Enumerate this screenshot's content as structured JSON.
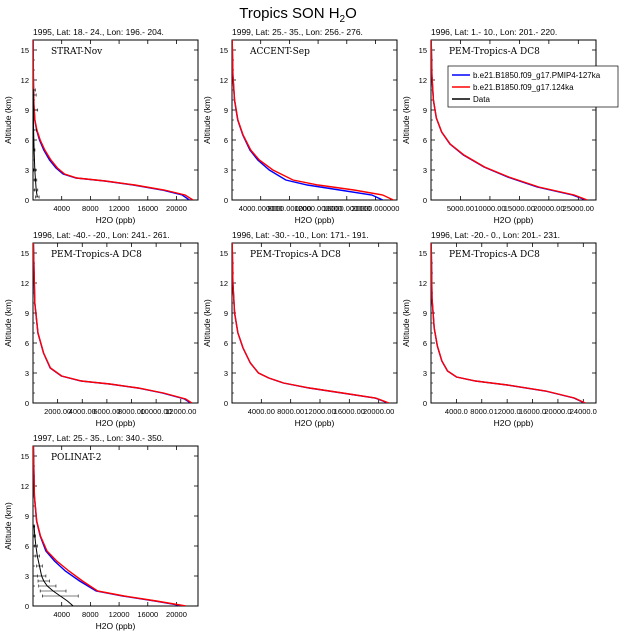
{
  "figure": {
    "title_main": "Tropics SON H",
    "title_sub": "2",
    "title_tail": "O"
  },
  "legend": {
    "placement": "top-right",
    "entries": [
      {
        "label": "b.e21.B1850.f09_g17.PMIP4-127ka",
        "color": "#0000ff"
      },
      {
        "label": "b.e21.B1850.f09_g17.124ka",
        "color": "#ff0000"
      },
      {
        "label": "Data",
        "color": "#000000"
      }
    ]
  },
  "chart_data": [
    {
      "type": "line",
      "title": "1995, Lat: 18.- 24., Lon: 196.- 204.",
      "campaign": "STRAT-Nov",
      "xlabel": "H2O (ppb)",
      "ylabel": "Altitude (km)",
      "xlim": [
        0,
        23000
      ],
      "ylim": [
        0,
        16
      ],
      "xticks": [
        4000,
        8000,
        12000,
        16000,
        20000
      ],
      "xtick_labels": [
        "4000",
        "8000",
        "12000",
        "16000",
        "20000"
      ],
      "yticks": [
        0,
        3,
        6,
        9,
        12,
        15
      ],
      "series": [
        {
          "name": "b.e21.B1850.f09_g17.PMIP4-127ka",
          "color": "#0000ff",
          "x": [
            21800,
            20800,
            18000,
            14000,
            10000,
            6000,
            4200,
            3200,
            2300,
            1500,
            900,
            500,
            250,
            120,
            50,
            20
          ],
          "y": [
            0,
            0.5,
            1,
            1.5,
            1.9,
            2.2,
            2.6,
            3.2,
            4.0,
            5.0,
            6.0,
            7.0,
            8.0,
            9.5,
            12,
            16
          ]
        },
        {
          "name": "b.e21.B1850.f09_g17.124ka",
          "color": "#ff0000",
          "x": [
            22300,
            21200,
            18300,
            14200,
            10100,
            6100,
            4400,
            3400,
            2500,
            1650,
            1000,
            550,
            270,
            130,
            55,
            20
          ],
          "y": [
            0,
            0.5,
            1,
            1.5,
            1.9,
            2.2,
            2.6,
            3.2,
            4.0,
            5.0,
            6.0,
            7.0,
            8.0,
            9.5,
            12,
            16
          ]
        },
        {
          "name": "Data",
          "color": "#000000",
          "x": [
            600,
            450,
            350,
            250,
            150,
            80,
            60,
            40,
            20
          ],
          "y": [
            0.3,
            1,
            2,
            3,
            5,
            7,
            9,
            10.5,
            11
          ],
          "xerr": [
            250,
            220,
            180,
            150,
            120,
            400,
            600,
            400,
            300
          ]
        }
      ]
    },
    {
      "type": "line",
      "title": "1999, Lat: 25.- 35., Lon: 256.- 276.",
      "campaign": "ACCENT-Sep",
      "xlabel": "H2O (ppb)",
      "ylabel": "Altitude (km)",
      "xlim": [
        0,
        23000
      ],
      "ylim": [
        0,
        16
      ],
      "xticks": [
        4000,
        8000,
        12000,
        16000,
        20000
      ],
      "xtick_labels": [
        "4000.000000",
        "8000.000000",
        "12000.000000",
        "16000.000000",
        "20000.000000"
      ],
      "yticks": [
        0,
        3,
        6,
        9,
        12,
        15
      ],
      "series": [
        {
          "name": "b.e21.B1850.f09_g17.PMIP4-127ka",
          "color": "#0000ff",
          "x": [
            21000,
            19500,
            15000,
            10500,
            7500,
            5200,
            3600,
            2500,
            1500,
            800,
            350,
            120,
            30
          ],
          "y": [
            0,
            0.5,
            1,
            1.5,
            2,
            3,
            4,
            5,
            6.5,
            8,
            10,
            12.5,
            16
          ]
        },
        {
          "name": "b.e21.B1850.f09_g17.124ka",
          "color": "#ff0000",
          "x": [
            22500,
            21000,
            17000,
            12000,
            8500,
            5700,
            3800,
            2600,
            1550,
            820,
            360,
            125,
            30
          ],
          "y": [
            0,
            0.5,
            1,
            1.5,
            2,
            3,
            4,
            5,
            6.5,
            8,
            10,
            12.5,
            16
          ]
        }
      ]
    },
    {
      "type": "line",
      "title": "1996, Lat: 1.- 10., Lon: 201.- 220.",
      "campaign": "PEM-Tropics-A DC8",
      "xlabel": "H2O (ppb)",
      "ylabel": "Altitude (km)",
      "xlim": [
        0,
        28000
      ],
      "ylim": [
        0,
        16
      ],
      "xticks": [
        5000,
        10000,
        15000,
        20000,
        25000
      ],
      "xtick_labels": [
        "5000.00",
        "10000.00",
        "15000.00",
        "20000.00",
        "25000.00"
      ],
      "yticks": [
        0,
        3,
        6,
        9,
        12,
        15
      ],
      "series": [
        {
          "name": "b.e21.B1850.f09_g17.PMIP4-127ka",
          "color": "#0000ff",
          "x": [
            26300,
            24000,
            18000,
            13000,
            9000,
            5500,
            3200,
            1800,
            900,
            400,
            150,
            40
          ],
          "y": [
            0,
            0.5,
            1.3,
            2.3,
            3.3,
            4.5,
            5.6,
            6.8,
            8.2,
            10,
            12.5,
            16
          ]
        },
        {
          "name": "b.e21.B1850.f09_g17.124ka",
          "color": "#ff0000",
          "x": [
            26500,
            24300,
            18300,
            13200,
            9100,
            5600,
            3250,
            1820,
            910,
            405,
            150,
            40
          ],
          "y": [
            0,
            0.5,
            1.3,
            2.3,
            3.3,
            4.5,
            5.6,
            6.8,
            8.2,
            10,
            12.5,
            16
          ]
        }
      ]
    },
    {
      "type": "line",
      "title": "1996, Lat: -40.- -20., Lon: 241.- 261.",
      "campaign": "PEM-Tropics-A DC8",
      "xlabel": "H2O (ppb)",
      "ylabel": "Altitude (km)",
      "xlim": [
        0,
        13400
      ],
      "ylim": [
        0,
        16
      ],
      "xticks": [
        2000,
        4000,
        6000,
        8000,
        10000,
        12000
      ],
      "xtick_labels": [
        "2000.00",
        "4000.00",
        "6000.00",
        "8000.00",
        "10000.00",
        "12000.00"
      ],
      "yticks": [
        0,
        3,
        6,
        9,
        12,
        15
      ],
      "series": [
        {
          "name": "b.e21.B1850.f09_g17.PMIP4-127ka",
          "color": "#0000ff",
          "x": [
            12800,
            12300,
            10500,
            8500,
            6200,
            3900,
            2300,
            1400,
            850,
            400,
            150,
            30
          ],
          "y": [
            0,
            0.4,
            1,
            1.5,
            1.9,
            2.2,
            2.7,
            3.5,
            5,
            7,
            10,
            16
          ]
        },
        {
          "name": "b.e21.B1850.f09_g17.124ka",
          "color": "#ff0000",
          "x": [
            12900,
            12400,
            10600,
            8550,
            6250,
            3950,
            2330,
            1420,
            860,
            405,
            150,
            30
          ],
          "y": [
            0,
            0.4,
            1,
            1.5,
            1.9,
            2.2,
            2.7,
            3.5,
            5,
            7,
            10,
            16
          ]
        }
      ]
    },
    {
      "type": "line",
      "title": "1996, Lat: -30.- -10., Lon: 171.- 191.",
      "campaign": "PEM-Tropics-A DC8",
      "xlabel": "H2O (ppb)",
      "ylabel": "Altitude (km)",
      "xlim": [
        0,
        22500
      ],
      "ylim": [
        0,
        16
      ],
      "xticks": [
        4000,
        8000,
        12000,
        16000,
        20000
      ],
      "xtick_labels": [
        "4000.00",
        "8000.00",
        "12000.00",
        "16000.00",
        "20000.00"
      ],
      "yticks": [
        0,
        3,
        6,
        9,
        12,
        15
      ],
      "series": [
        {
          "name": "b.e21.B1850.f09_g17.PMIP4-127ka",
          "color": "#0000ff",
          "x": [
            21300,
            19500,
            15000,
            10500,
            7000,
            5000,
            3600,
            2500,
            1500,
            800,
            350,
            120,
            30
          ],
          "y": [
            0,
            0.5,
            1,
            1.5,
            2,
            2.5,
            3,
            4,
            5.5,
            7,
            9,
            12,
            16
          ]
        },
        {
          "name": "b.e21.B1850.f09_g17.124ka",
          "color": "#ff0000",
          "x": [
            21400,
            19600,
            15100,
            10600,
            7050,
            5030,
            3620,
            2510,
            1510,
            805,
            352,
            120,
            30
          ],
          "y": [
            0,
            0.5,
            1,
            1.5,
            2,
            2.5,
            3,
            4,
            5.5,
            7,
            9,
            12,
            16
          ]
        }
      ]
    },
    {
      "type": "line",
      "title": "1996, Lat: -20.- 0., Lon: 201.- 231.",
      "campaign": "PEM-Tropics-A DC8",
      "xlabel": "H2O (ppb)",
      "ylabel": "Altitude (km)",
      "xlim": [
        0,
        26000
      ],
      "ylim": [
        0,
        16
      ],
      "xticks": [
        4000,
        8000,
        12000,
        16000,
        20000,
        24000
      ],
      "xtick_labels": [
        "4000.0",
        "8000.0",
        "12000.0",
        "16000.0",
        "20000.0",
        "24000.0"
      ],
      "yticks": [
        0,
        3,
        6,
        9,
        12,
        15
      ],
      "series": [
        {
          "name": "b.e21.B1850.f09_g17.PMIP4-127ka",
          "color": "#0000ff",
          "x": [
            24200,
            22500,
            18000,
            12000,
            7000,
            4000,
            2600,
            1700,
            1000,
            500,
            150,
            30
          ],
          "y": [
            0,
            0.5,
            1.2,
            1.8,
            2.2,
            2.6,
            3.2,
            4.2,
            5.7,
            7.5,
            10.5,
            16
          ]
        },
        {
          "name": "b.e21.B1850.f09_g17.124ka",
          "color": "#ff0000",
          "x": [
            24300,
            22600,
            18100,
            12050,
            7050,
            4030,
            2620,
            1710,
            1005,
            502,
            150,
            30
          ],
          "y": [
            0,
            0.5,
            1.2,
            1.8,
            2.2,
            2.6,
            3.2,
            4.2,
            5.7,
            7.5,
            10.5,
            16
          ]
        }
      ]
    },
    {
      "type": "line",
      "title": "1997, Lat: 25.- 35., Lon: 340.- 350.",
      "campaign": "POLINAT-2",
      "xlabel": "H2O (ppb)",
      "ylabel": "Altitude (km)",
      "xlim": [
        0,
        23000
      ],
      "ylim": [
        0,
        16
      ],
      "xticks": [
        4000,
        8000,
        12000,
        16000,
        20000
      ],
      "xtick_labels": [
        "4000",
        "8000",
        "12000",
        "16000",
        "20000"
      ],
      "yticks": [
        0,
        3,
        6,
        9,
        12,
        15
      ],
      "series": [
        {
          "name": "b.e21.B1850.f09_g17.PMIP4-127ka",
          "color": "#0000ff",
          "x": [
            21000,
            17000,
            12500,
            8800,
            6500,
            4500,
            3000,
            1800,
            1000,
            500,
            200,
            50
          ],
          "y": [
            0,
            0.5,
            1,
            1.5,
            2.5,
            3.5,
            4.5,
            5.5,
            7,
            8.5,
            11,
            16
          ]
        },
        {
          "name": "b.e21.B1850.f09_g17.124ka",
          "color": "#ff0000",
          "x": [
            21300,
            17200,
            12700,
            9000,
            6900,
            5000,
            3300,
            1950,
            1050,
            520,
            200,
            50
          ],
          "y": [
            0,
            0.5,
            1,
            1.5,
            2.5,
            3.5,
            4.5,
            5.5,
            7,
            8.5,
            11,
            16
          ]
        },
        {
          "name": "Data",
          "color": "#000000",
          "x": [
            5600,
            4800,
            3800,
            2800,
            2000,
            1500,
            1200,
            900,
            600,
            400,
            250,
            150
          ],
          "y": [
            0,
            0.5,
            1,
            1.5,
            2,
            2.5,
            3,
            4,
            5,
            6,
            7,
            8
          ],
          "xerr": [
            0,
            0,
            2500,
            1800,
            1200,
            800,
            600,
            400,
            300,
            200,
            100,
            80
          ]
        }
      ]
    }
  ]
}
